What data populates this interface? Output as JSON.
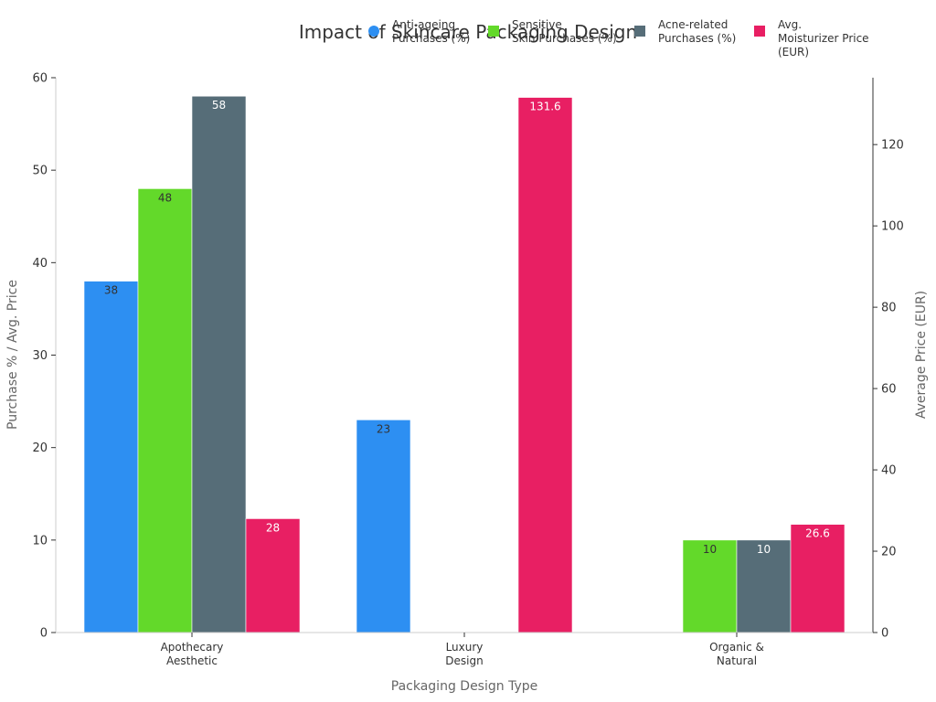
{
  "chart_data": {
    "type": "bar",
    "title": "Impact of Skincare Packaging Design",
    "xlabel": "Packaging Design Type",
    "ylabel": "Purchase % / Avg. Price",
    "y2label": "Average Price (EUR)",
    "categories": [
      [
        "Apothecary",
        "Aesthetic"
      ],
      [
        "Luxury",
        "Design"
      ],
      [
        "Organic &",
        "Natural"
      ]
    ],
    "ylim": [
      0,
      60
    ],
    "y2lim": [
      0,
      136.45
    ],
    "yticks": [
      "0",
      "10",
      "20",
      "30",
      "40",
      "50",
      "60"
    ],
    "y2ticks": [
      "0",
      "20",
      "40",
      "60",
      "80",
      "100",
      "120"
    ],
    "legend_position": "top",
    "series": [
      {
        "name": [
          "Anti-ageing",
          "Purchases (%)"
        ],
        "color": "#2d8ff2",
        "axis": "left",
        "values": [
          38,
          23,
          null
        ],
        "labels": [
          "38",
          "23",
          ""
        ],
        "label_color": "#333333"
      },
      {
        "name": [
          "Sensitive",
          "Skin Purchases (%)"
        ],
        "color": "#63d92a",
        "axis": "left",
        "values": [
          48,
          null,
          10
        ],
        "labels": [
          "48",
          "",
          "10"
        ],
        "label_color": "#333333"
      },
      {
        "name": [
          "Acne-related",
          "Purchases (%)"
        ],
        "color": "#566d78",
        "axis": "left",
        "values": [
          58,
          null,
          10
        ],
        "labels": [
          "58",
          "",
          "10"
        ],
        "label_color": "#ffffff"
      },
      {
        "name": [
          "Avg.",
          "Moisturizer Price",
          "(EUR)"
        ],
        "color": "#e81f63",
        "axis": "right",
        "values": [
          28,
          131.6,
          26.6
        ],
        "labels": [
          "28",
          "131.6",
          "26.6"
        ],
        "label_color": "#ffffff"
      }
    ]
  }
}
